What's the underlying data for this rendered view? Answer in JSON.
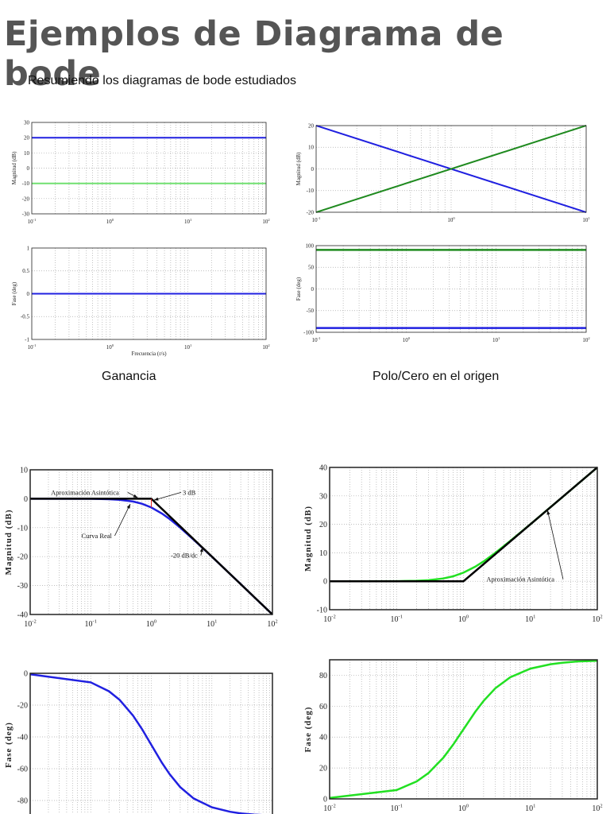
{
  "page": {
    "title": "Ejemplos de Diagrama de bode",
    "subtitle": "Resumiendo los diagramas de bode estudiados",
    "captions": [
      "Ganancia",
      "Polo/Cero en el origen"
    ]
  },
  "colors": {
    "blue": "#2020e0",
    "green_light": "#70e070",
    "green_dark": "#1f8a1f",
    "green_bright": "#22e022",
    "black": "#000000",
    "red": "#e02020",
    "title_gray": "#555555"
  },
  "chart_data": [
    {
      "type": "line",
      "xscale": "log",
      "xlim": [
        0.1,
        100
      ],
      "ylim": [
        -30,
        30
      ],
      "yticks": [
        -30,
        -20,
        -10,
        0,
        10,
        20,
        30
      ],
      "xticks": [
        0.1,
        1,
        10,
        100
      ],
      "ylabel": "Magnitud (dB)",
      "xlabel": "",
      "grid": true,
      "series": [
        {
          "color": "#2020e0",
          "x": [
            0.1,
            100
          ],
          "y": [
            20,
            20
          ]
        },
        {
          "color": "#70e070",
          "x": [
            0.1,
            100
          ],
          "y": [
            -10,
            -10
          ]
        }
      ]
    },
    {
      "type": "line",
      "xscale": "log",
      "xlim": [
        0.1,
        100
      ],
      "ylim": [
        -1,
        1
      ],
      "yticks": [
        -1,
        -0.5,
        0,
        0.5,
        1
      ],
      "xticks": [
        0.1,
        1,
        10,
        100
      ],
      "ylabel": "Fase (deg)",
      "xlabel": "Frecuencia (r/s)",
      "grid": true,
      "series": [
        {
          "color": "#70e070",
          "x": [
            0.1,
            100
          ],
          "y": [
            0,
            0
          ]
        },
        {
          "color": "#2020e0",
          "x": [
            0.1,
            100
          ],
          "y": [
            0,
            0
          ]
        }
      ]
    },
    {
      "type": "line",
      "xscale": "log",
      "xlim": [
        0.1,
        10
      ],
      "ylim": [
        -20,
        20
      ],
      "yticks": [
        -20,
        -10,
        0,
        10,
        20
      ],
      "xticks": [
        0.1,
        1,
        10
      ],
      "ylabel": "Magnitud (dB)",
      "xlabel": "",
      "grid": true,
      "series": [
        {
          "color": "#2020e0",
          "x": [
            0.1,
            10
          ],
          "y": [
            20,
            -20
          ]
        },
        {
          "color": "#1f8a1f",
          "x": [
            0.1,
            10
          ],
          "y": [
            -20,
            20
          ]
        }
      ]
    },
    {
      "type": "line",
      "xscale": "log",
      "xlim": [
        0.1,
        100
      ],
      "ylim": [
        -100,
        100
      ],
      "yticks": [
        -100,
        -50,
        0,
        50,
        100
      ],
      "xticks": [
        0.1,
        1,
        10,
        100
      ],
      "ylabel": "Fase (deg)",
      "xlabel": "",
      "grid": true,
      "series": [
        {
          "color": "#1f8a1f",
          "x": [
            0.1,
            100
          ],
          "y": [
            90,
            90
          ]
        },
        {
          "color": "#2020e0",
          "x": [
            0.1,
            100
          ],
          "y": [
            -90,
            -90
          ]
        }
      ]
    },
    {
      "type": "line",
      "xscale": "log",
      "xlim": [
        0.01,
        100
      ],
      "ylim": [
        -40,
        10
      ],
      "yticks": [
        -40,
        -30,
        -20,
        -10,
        0,
        10
      ],
      "xticks": [
        0.01,
        0.1,
        1,
        10,
        100
      ],
      "ylabel": "Magnitud (dB)",
      "xlabel": "",
      "grid": true,
      "series": [
        {
          "color": "#2020e0",
          "x": [
            0.01,
            0.1,
            0.2,
            0.3,
            0.5,
            0.7,
            1,
            1.5,
            2,
            3,
            5,
            10,
            20,
            30,
            50,
            100
          ],
          "y": [
            0,
            -0.04,
            -0.17,
            -0.37,
            -0.97,
            -1.73,
            -3.01,
            -5.12,
            -6.99,
            -10,
            -14.15,
            -20.04,
            -26.03,
            -29.5,
            -33.98,
            -40
          ]
        },
        {
          "color": "#000000",
          "x": [
            0.01,
            1,
            100
          ],
          "y": [
            0,
            0,
            -40
          ]
        },
        {
          "color": "#e02020",
          "x": [
            1,
            1
          ],
          "y": [
            0,
            -3
          ]
        }
      ],
      "annotations": [
        {
          "text": "Aproximación Asintótica",
          "x": 0.022,
          "y": 2.2,
          "arrow_to": [
            0.6,
            0.3
          ]
        },
        {
          "text": "3 dB",
          "x": 3.3,
          "y": 2.2,
          "arrow_to": [
            1.1,
            -0.5
          ]
        },
        {
          "text": "Curva Real",
          "x": 0.07,
          "y": -12.8,
          "arrow_to": [
            0.45,
            -1.8
          ]
        },
        {
          "text": "-20 dB/dc",
          "x": 2.1,
          "y": -19.6,
          "arrow_to": [
            7,
            -16.8
          ]
        }
      ]
    },
    {
      "type": "line",
      "xscale": "log",
      "xlim": [
        0.01,
        100
      ],
      "ylim": [
        -90,
        0
      ],
      "yticks": [
        -80,
        -60,
        -40,
        -20,
        0
      ],
      "xticks": [],
      "ylabel": "Fase (deg)",
      "xlabel": "",
      "grid": true,
      "series": [
        {
          "color": "#2020e0",
          "x": [
            0.01,
            0.1,
            0.2,
            0.3,
            0.5,
            0.7,
            1,
            1.5,
            2,
            3,
            5,
            10,
            20,
            30,
            50,
            100
          ],
          "y": [
            -0.6,
            -5.7,
            -11.3,
            -16.7,
            -26.6,
            -35,
            -45,
            -56.3,
            -63.4,
            -71.6,
            -78.7,
            -84.3,
            -87.1,
            -88.1,
            -88.9,
            -89.4
          ]
        }
      ]
    },
    {
      "type": "line",
      "xscale": "log",
      "xlim": [
        0.01,
        100
      ],
      "ylim": [
        -10,
        40
      ],
      "yticks": [
        -10,
        0,
        10,
        20,
        30,
        40
      ],
      "xticks": [
        0.01,
        0.1,
        1,
        10,
        100
      ],
      "ylabel": "Magnitud (dB)",
      "xlabel": "",
      "grid": true,
      "series": [
        {
          "color": "#22e022",
          "x": [
            0.01,
            0.1,
            0.2,
            0.3,
            0.5,
            0.7,
            1,
            1.5,
            2,
            3,
            5,
            10,
            20,
            30,
            50,
            100
          ],
          "y": [
            0,
            0.04,
            0.17,
            0.37,
            0.97,
            1.73,
            3.01,
            5.12,
            6.99,
            10,
            14.15,
            20.04,
            26.03,
            29.5,
            33.98,
            40
          ]
        },
        {
          "color": "#000000",
          "x": [
            0.01,
            1,
            100
          ],
          "y": [
            0,
            0,
            40
          ]
        }
      ],
      "annotations": [
        {
          "text": "Aproximación Asintótica",
          "x": 2.2,
          "y": 0.7,
          "arrow_to": [
            18,
            25
          ]
        }
      ]
    },
    {
      "type": "line",
      "xscale": "log",
      "xlim": [
        0.01,
        100
      ],
      "ylim": [
        0,
        90
      ],
      "yticks": [
        0,
        20,
        40,
        60,
        80
      ],
      "xticks": [
        0.01,
        0.1,
        1,
        10,
        100
      ],
      "ylabel": "Fase (deg)",
      "xlabel": "",
      "grid": true,
      "series": [
        {
          "color": "#22e022",
          "x": [
            0.01,
            0.1,
            0.2,
            0.3,
            0.5,
            0.7,
            1,
            1.5,
            2,
            3,
            5,
            10,
            20,
            30,
            50,
            100
          ],
          "y": [
            0.6,
            5.7,
            11.3,
            16.7,
            26.6,
            35,
            45,
            56.3,
            63.4,
            71.6,
            78.7,
            84.3,
            87.1,
            88.1,
            88.9,
            89.4
          ]
        }
      ]
    }
  ]
}
